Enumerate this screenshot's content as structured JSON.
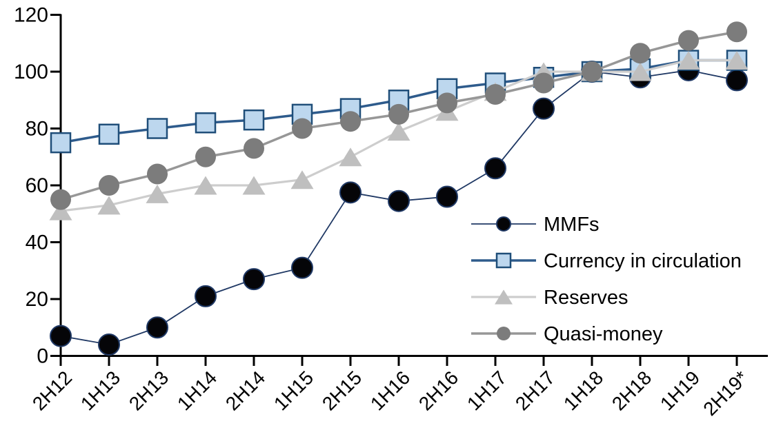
{
  "chart_data": {
    "type": "line",
    "categories": [
      "2H12",
      "1H13",
      "2H13",
      "1H14",
      "2H14",
      "1H15",
      "2H15",
      "1H16",
      "2H16",
      "1H17",
      "2H17",
      "1H18",
      "2H18",
      "1H19",
      "2H19*"
    ],
    "series": [
      {
        "name": "MMFs",
        "marker": "circle",
        "line_color": "#1F3864",
        "line_width": 1.8,
        "marker_fill": "#050508",
        "marker_stroke": "#1F3864",
        "values": [
          7,
          4,
          10,
          21,
          27,
          31,
          57.5,
          54.5,
          56,
          66,
          87,
          100,
          98,
          100.5,
          97
        ]
      },
      {
        "name": "Currency in circulation",
        "marker": "square",
        "line_color": "#2E5B8C",
        "line_width": 3.5,
        "marker_fill": "#BDD7EE",
        "marker_stroke": "#1F4E79",
        "values": [
          75,
          78,
          80,
          82,
          83,
          85,
          87,
          90,
          94,
          96,
          98,
          100,
          101,
          104,
          104
        ]
      },
      {
        "name": "Reserves",
        "marker": "triangle",
        "line_color": "#CDCDCD",
        "line_width": 3.2,
        "marker_fill": "#BFBFBF",
        "marker_stroke": "none",
        "values": [
          51,
          53,
          57,
          60,
          60,
          62,
          70,
          79,
          86,
          93,
          100,
          100,
          100,
          104,
          104
        ]
      },
      {
        "name": "Quasi-money",
        "marker": "circle",
        "line_color": "#979797",
        "line_width": 3.5,
        "marker_fill": "#7C7C7C",
        "marker_stroke": "none",
        "values": [
          55,
          60,
          64,
          70,
          73,
          80,
          82.5,
          85,
          89,
          92,
          96,
          100,
          106.5,
          111,
          114
        ]
      }
    ],
    "y_axis": {
      "min": 0,
      "max": 120,
      "tick_step": 20,
      "ticks": [
        0,
        20,
        40,
        60,
        80,
        100,
        120
      ]
    },
    "x_axis": {
      "label_rotation_deg": 45
    },
    "legend": {
      "position": "inside-right",
      "items": [
        "MMFs",
        "Currency in circulation",
        "Reserves",
        "Quasi-money"
      ]
    },
    "grid": false,
    "background": "#FFFFFF",
    "axis_color": "#000000"
  }
}
